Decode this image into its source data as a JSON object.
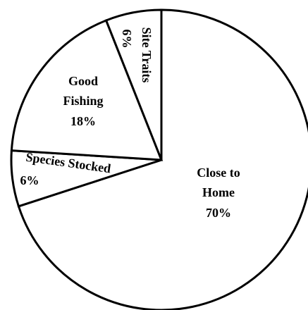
{
  "chart_data": {
    "type": "pie",
    "categories": [
      "Close to Home",
      "Species Stocked",
      "Good Fishing",
      "Site Traits"
    ],
    "values": [
      70,
      6,
      18,
      6
    ],
    "value_labels": [
      "70%",
      "6%",
      "18%",
      "6%"
    ],
    "color": "#ffffff"
  }
}
